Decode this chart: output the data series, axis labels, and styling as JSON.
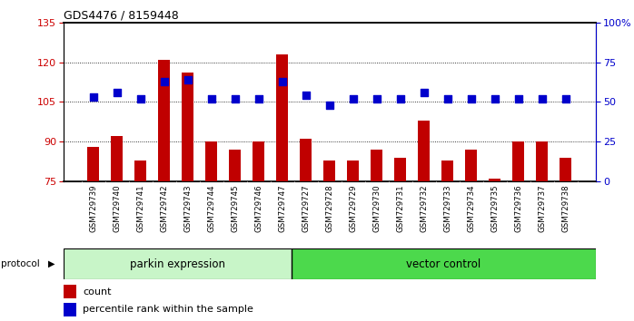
{
  "title": "GDS4476 / 8159448",
  "samples": [
    "GSM729739",
    "GSM729740",
    "GSM729741",
    "GSM729742",
    "GSM729743",
    "GSM729744",
    "GSM729745",
    "GSM729746",
    "GSM729747",
    "GSM729727",
    "GSM729728",
    "GSM729729",
    "GSM729730",
    "GSM729731",
    "GSM729732",
    "GSM729733",
    "GSM729734",
    "GSM729735",
    "GSM729736",
    "GSM729737",
    "GSM729738"
  ],
  "counts": [
    88,
    92,
    83,
    121,
    116,
    90,
    87,
    90,
    123,
    91,
    83,
    83,
    87,
    84,
    98,
    83,
    87,
    76,
    90,
    90,
    84
  ],
  "percentile_ranks": [
    53,
    56,
    52,
    63,
    64,
    52,
    52,
    52,
    63,
    54,
    48,
    52,
    52,
    52,
    56,
    52,
    52,
    52,
    52,
    52,
    52
  ],
  "group1_count": 9,
  "group2_count": 12,
  "group1_label": "parkin expression",
  "group2_label": "vector control",
  "group1_color": "#c8f5c8",
  "group2_color": "#4cd94c",
  "bar_color": "#c00000",
  "dot_color": "#0000cc",
  "ylim_left": [
    75,
    135
  ],
  "ylim_right": [
    0,
    100
  ],
  "yticks_left": [
    75,
    90,
    105,
    120,
    135
  ],
  "yticks_right": [
    0,
    25,
    50,
    75,
    100
  ],
  "ytick_labels_right": [
    "0",
    "25",
    "50",
    "75",
    "100%"
  ],
  "xtick_bg_color": "#d8d8d8",
  "protocol_label": "protocol",
  "legend_count_label": "count",
  "legend_pct_label": "percentile rank within the sample"
}
